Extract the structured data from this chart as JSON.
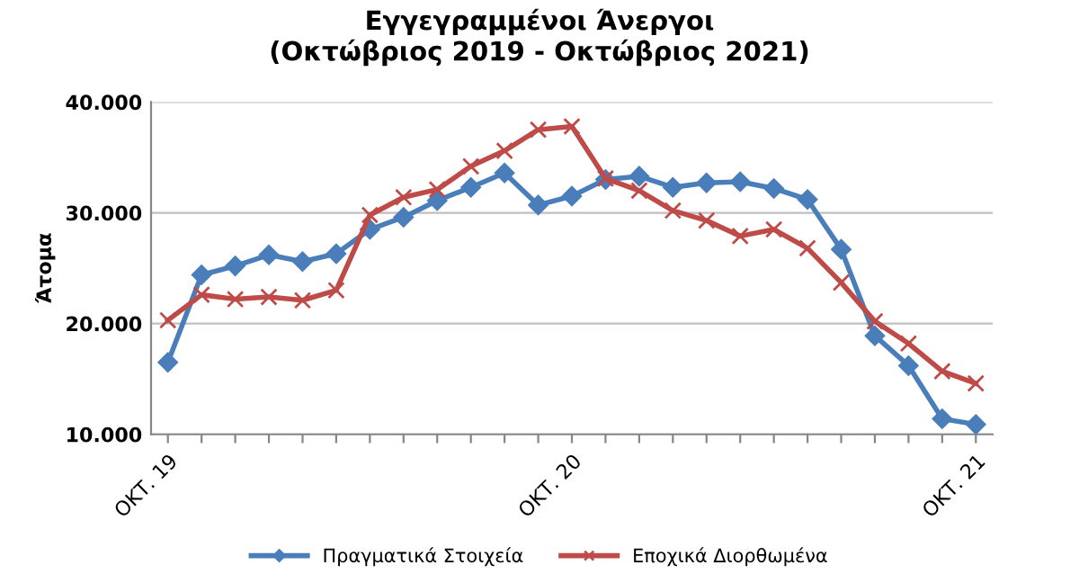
{
  "chart_data": {
    "type": "line",
    "title": "Εγγεγραμμένοι Άνεργοι\n(Οκτώβριος 2019 - Οκτώβριος 2021)",
    "ylabel": "Άτομα",
    "categories": [
      "ΟΚΤ. 19",
      null,
      null,
      null,
      null,
      null,
      null,
      null,
      null,
      null,
      null,
      null,
      "ΟΚΤ. 20",
      null,
      null,
      null,
      null,
      null,
      null,
      null,
      null,
      null,
      null,
      null,
      "ΟΚΤ. 21"
    ],
    "series": [
      {
        "name": "Πραγματικά Στοιχεία",
        "color": "#4a7ebb",
        "marker": "diamond",
        "values": [
          16500,
          24400,
          25200,
          26200,
          25600,
          26300,
          28500,
          29600,
          31100,
          32300,
          33600,
          30700,
          31500,
          33000,
          33300,
          32300,
          32700,
          32800,
          32200,
          31200,
          26700,
          18900,
          16200,
          11400,
          10900
        ]
      },
      {
        "name": "Εποχικά Διορθωμένα",
        "color": "#be4b48",
        "marker": "cross",
        "values": [
          20300,
          22600,
          22200,
          22400,
          22100,
          23000,
          29800,
          31400,
          32100,
          34200,
          35600,
          37500,
          37800,
          33100,
          32000,
          30200,
          29300,
          27900,
          28500,
          26800,
          23700,
          20200,
          18200,
          15700,
          14600
        ]
      }
    ],
    "ylim": [
      10000,
      40000
    ],
    "yticks": [
      {
        "value": 10000,
        "label": "10.000"
      },
      {
        "value": 20000,
        "label": "20.000"
      },
      {
        "value": 30000,
        "label": "30.000"
      },
      {
        "value": 40000,
        "label": "40.000"
      }
    ],
    "grid": "y",
    "legend": "bottom",
    "line_style": "solid"
  }
}
